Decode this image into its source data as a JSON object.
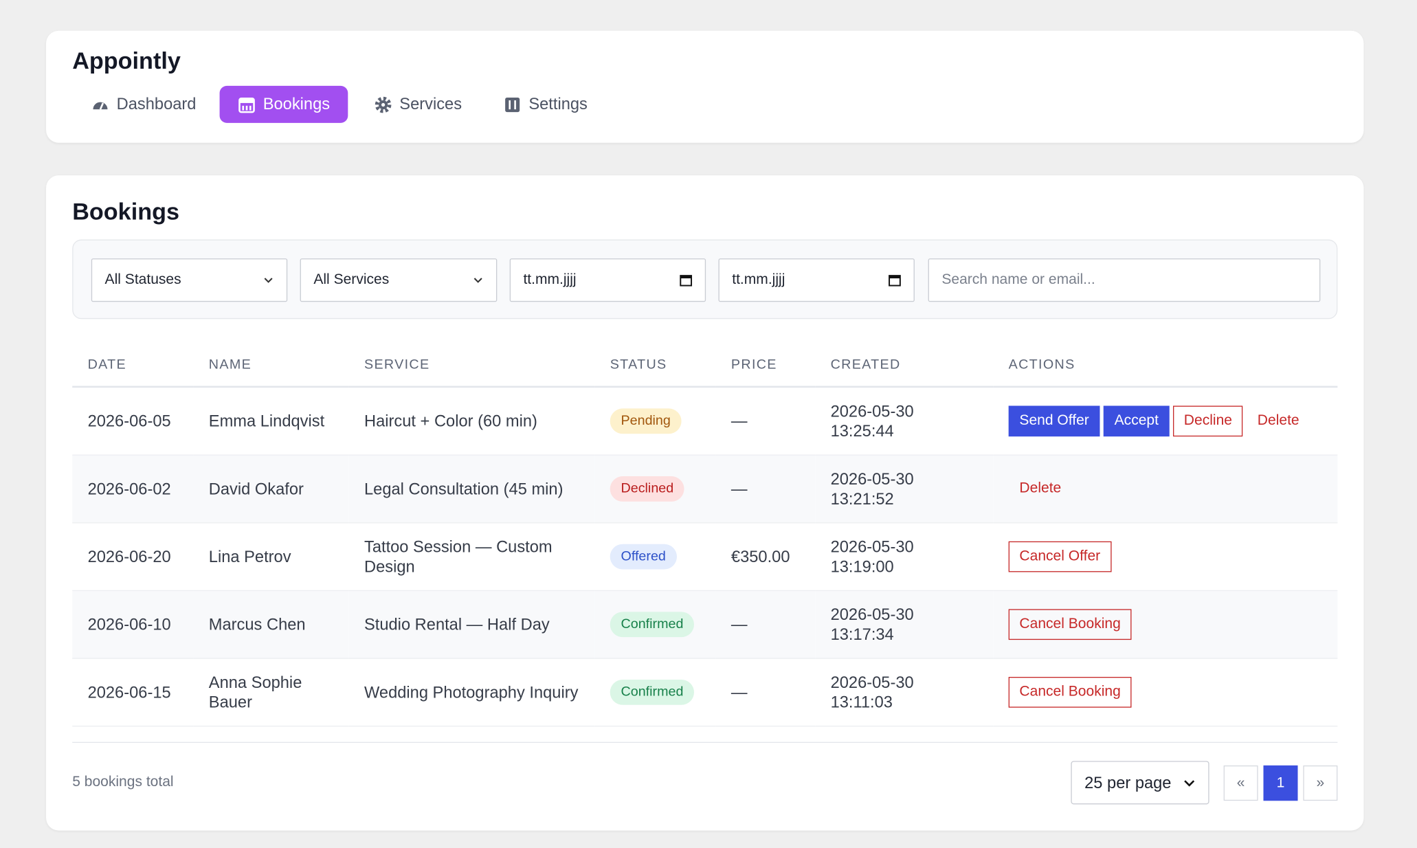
{
  "header": {
    "brand": "Appointly",
    "nav": [
      "Dashboard",
      "Bookings",
      "Services",
      "Settings"
    ]
  },
  "bookings": {
    "title": "Bookings",
    "filters": {
      "status": "All Statuses",
      "service": "All Services",
      "date_from": "tt.mm.jjjj",
      "date_to": "tt.mm.jjjj",
      "search_placeholder": "Search name or email..."
    },
    "table": {
      "headers": [
        "DATE",
        "NAME",
        "SERVICE",
        "STATUS",
        "PRICE",
        "CREATED",
        "ACTIONS"
      ],
      "rows": [
        {
          "date": "2026-06-05",
          "name": "Emma Lindqvist",
          "service": "Haircut + Color (60 min)",
          "status": "Pending",
          "price": "—",
          "created": "2026-05-30 13:25:44",
          "actions": [
            "Send Offer",
            "Accept",
            "Decline",
            "Delete"
          ]
        },
        {
          "date": "2026-06-02",
          "name": "David Okafor",
          "service": "Legal Consultation (45 min)",
          "status": "Declined",
          "price": "—",
          "created": "2026-05-30 13:21:52",
          "actions": [
            "Delete"
          ]
        },
        {
          "date": "2026-06-20",
          "name": "Lina Petrov",
          "service": "Tattoo Session — Custom Design",
          "status": "Offered",
          "price": "€350.00",
          "created": "2026-05-30 13:19:00",
          "actions": [
            "Cancel Offer"
          ]
        },
        {
          "date": "2026-06-10",
          "name": "Marcus Chen",
          "service": "Studio Rental — Half Day",
          "status": "Confirmed",
          "price": "—",
          "created": "2026-05-30 13:17:34",
          "actions": [
            "Cancel Booking"
          ]
        },
        {
          "date": "2026-06-15",
          "name": "Anna Sophie Bauer",
          "service": "Wedding Photography Inquiry",
          "status": "Confirmed",
          "price": "—",
          "created": "2026-05-30 13:11:03",
          "actions": [
            "Cancel Booking"
          ]
        }
      ]
    },
    "footer": {
      "total": "5 bookings total",
      "per_page": "25 per page",
      "pagination": [
        "«",
        "1",
        "»"
      ]
    }
  }
}
